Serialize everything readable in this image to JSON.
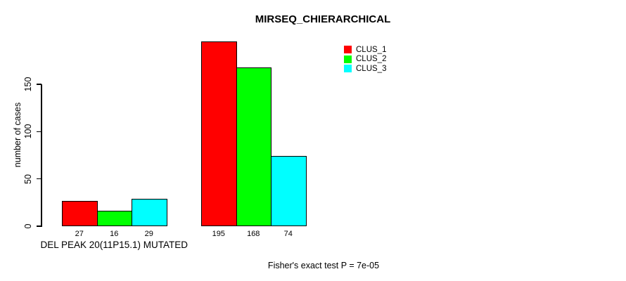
{
  "title": "MIRSEQ_CHIERARCHICAL",
  "y_axis": {
    "label": "number of cases",
    "tick_labels": [
      "0",
      "50",
      "100",
      "150"
    ]
  },
  "x_axis": {
    "group_labels": [
      "DEL PEAK 20(11P15.1) MUTATED",
      ""
    ]
  },
  "legend": {
    "entries": [
      {
        "label": "CLUS_1",
        "color": "#FF0000",
        "swatch": "red-square-swatch"
      },
      {
        "label": "CLUS_2",
        "color": "#00FF00",
        "swatch": "green-square-swatch"
      },
      {
        "label": "CLUS_3",
        "color": "#00FFFF",
        "swatch": "cyan-square-swatch"
      }
    ]
  },
  "annotation": "Fisher's exact test P = 7e-05",
  "colors": {
    "background": "#FFFFFF",
    "axis": "#000000",
    "bar_border": "#000000",
    "clus_1": "#FF0000",
    "clus_2": "#00FF00",
    "clus_3": "#00FFFF"
  },
  "chart_data": {
    "type": "bar",
    "grouped": true,
    "title": "MIRSEQ_CHIERARCHICAL",
    "xlabel": "",
    "ylabel": "number of cases",
    "categories": [
      "DEL PEAK 20(11P15.1) MUTATED",
      ""
    ],
    "series": [
      {
        "name": "CLUS_1",
        "color": "#FF0000",
        "values": [
          27,
          195
        ]
      },
      {
        "name": "CLUS_2",
        "color": "#00FF00",
        "values": [
          16,
          168
        ]
      },
      {
        "name": "CLUS_3",
        "color": "#00FFFF",
        "values": [
          29,
          74
        ]
      }
    ],
    "bar_value_labels": [
      [
        "27",
        "16",
        "29"
      ],
      [
        "195",
        "168",
        "74"
      ]
    ],
    "ylim": [
      0,
      195
    ],
    "yticks": [
      0,
      50,
      100,
      150
    ],
    "grid": false,
    "legend_position": "top-right",
    "annotation": "Fisher's exact test P = 7e-05"
  }
}
